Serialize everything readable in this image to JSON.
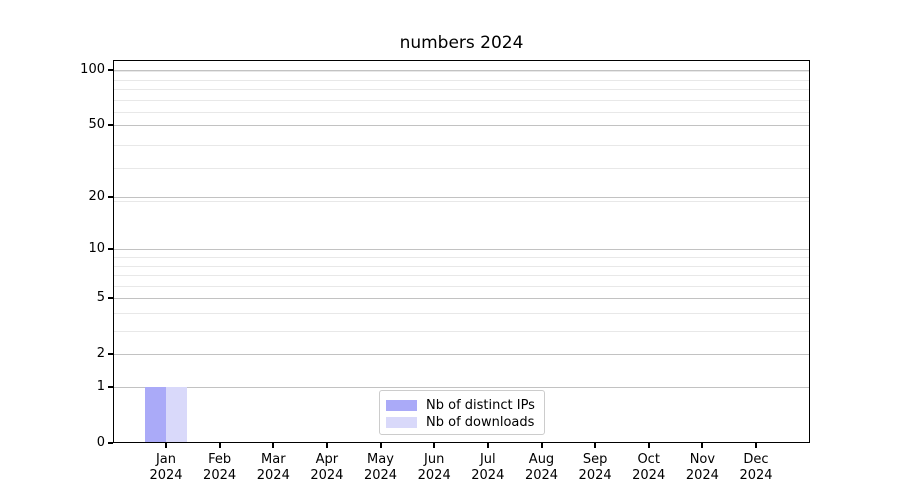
{
  "chart_data": {
    "type": "bar",
    "title": "numbers 2024",
    "xlabel": "",
    "ylabel": "",
    "x_categories": [
      "Jan",
      "Feb",
      "Mar",
      "Apr",
      "May",
      "Jun",
      "Jul",
      "Aug",
      "Sep",
      "Oct",
      "Nov",
      "Dec"
    ],
    "x_year_line": "2024",
    "y_scale": "log10(1+x)",
    "ylim": [
      0,
      114
    ],
    "y_major_ticks": [
      0,
      1,
      2,
      5,
      10,
      20,
      50,
      100
    ],
    "y_minor_grid_values": [
      3,
      4,
      6,
      7,
      8,
      9,
      19,
      29,
      39,
      59,
      69,
      79,
      89,
      99
    ],
    "grid": "horizontal major+minor",
    "legend_position": "lower center",
    "series": [
      {
        "name": "Nb of distinct IPs",
        "color": "#aaaaf8",
        "values": [
          1,
          0,
          0,
          0,
          0,
          0,
          0,
          0,
          0,
          0,
          0,
          0
        ]
      },
      {
        "name": "Nb of downloads",
        "color": "#d9d9fa",
        "values": [
          1,
          0,
          0,
          0,
          0,
          0,
          0,
          0,
          0,
          0,
          0,
          0
        ]
      }
    ]
  },
  "colors": {
    "spine": "#000000",
    "major_grid": "rgba(0,0,0,0.24)",
    "minor_grid": "rgba(0,0,0,0.09)",
    "background": "#ffffff"
  }
}
